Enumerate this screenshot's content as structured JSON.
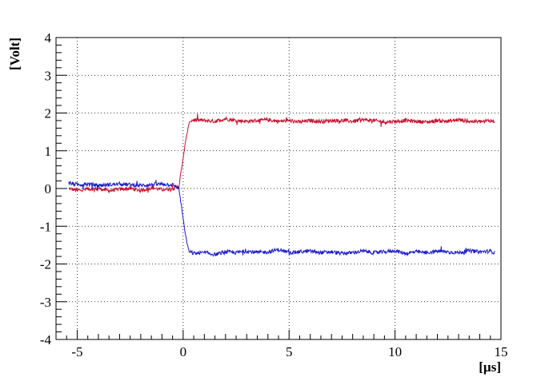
{
  "chart_data": {
    "type": "line",
    "title": "",
    "xlabel": "[µs]",
    "ylabel": "[Volt]",
    "xlim": [
      -6.0,
      15.0
    ],
    "ylim": [
      -4,
      4
    ],
    "xticks": [
      -5,
      0,
      5,
      10,
      15
    ],
    "yticks": [
      -4,
      -3,
      -2,
      -1,
      0,
      1,
      2,
      3,
      4
    ],
    "xtick_labels": [
      "-5",
      "0",
      "5",
      "10",
      "15"
    ],
    "ytick_labels": [
      "-4",
      "-3",
      "-2",
      "-1",
      "0",
      "1",
      "2",
      "3",
      "4"
    ],
    "grid": true,
    "legend": "none",
    "series": [
      {
        "color": "#c8102e",
        "x": [
          -5.4,
          -5.0,
          -4.5,
          -4.0,
          -3.5,
          -3.0,
          -2.5,
          -2.0,
          -1.5,
          -1.0,
          -0.5,
          -0.2,
          0.0,
          0.1,
          0.2,
          0.3,
          0.5,
          1.0,
          1.5,
          2.0,
          2.5,
          3.0,
          3.5,
          4.0,
          4.5,
          5.0,
          5.5,
          6.0,
          6.5,
          7.0,
          7.5,
          8.0,
          8.5,
          9.0,
          9.5,
          10.0,
          10.5,
          11.0,
          11.5,
          12.0,
          12.5,
          13.0,
          13.5,
          14.0,
          14.5,
          14.7
        ],
        "y": [
          0.0,
          -0.05,
          -0.02,
          0.0,
          -0.06,
          -0.02,
          0.0,
          -0.05,
          0.02,
          -0.03,
          0.0,
          0.05,
          0.8,
          1.2,
          1.5,
          1.78,
          1.82,
          1.8,
          1.78,
          1.85,
          1.8,
          1.78,
          1.8,
          1.82,
          1.78,
          1.8,
          1.76,
          1.8,
          1.78,
          1.8,
          1.8,
          1.78,
          1.82,
          1.8,
          1.76,
          1.78,
          1.8,
          1.78,
          1.76,
          1.8,
          1.78,
          1.82,
          1.78,
          1.77,
          1.8,
          1.78
        ]
      },
      {
        "color": "#1a1acc",
        "x": [
          -5.4,
          -5.0,
          -4.5,
          -4.0,
          -3.5,
          -3.0,
          -2.5,
          -2.0,
          -1.5,
          -1.0,
          -0.5,
          -0.2,
          0.0,
          0.1,
          0.2,
          0.3,
          0.5,
          1.0,
          1.5,
          2.0,
          2.5,
          3.0,
          3.5,
          4.0,
          4.5,
          5.0,
          5.5,
          6.0,
          6.5,
          7.0,
          7.5,
          8.0,
          8.5,
          9.0,
          9.5,
          10.0,
          10.5,
          11.0,
          11.5,
          12.0,
          12.5,
          13.0,
          13.5,
          14.0,
          14.5,
          14.7
        ],
        "y": [
          0.15,
          0.1,
          0.12,
          0.08,
          0.1,
          0.12,
          0.1,
          0.08,
          0.1,
          0.12,
          0.1,
          0.0,
          -0.8,
          -1.2,
          -1.5,
          -1.68,
          -1.72,
          -1.7,
          -1.75,
          -1.68,
          -1.7,
          -1.66,
          -1.7,
          -1.68,
          -1.62,
          -1.7,
          -1.68,
          -1.66,
          -1.7,
          -1.68,
          -1.72,
          -1.7,
          -1.66,
          -1.7,
          -1.68,
          -1.65,
          -1.72,
          -1.68,
          -1.7,
          -1.66,
          -1.68,
          -1.7,
          -1.65,
          -1.68,
          -1.66,
          -1.7
        ]
      }
    ]
  }
}
